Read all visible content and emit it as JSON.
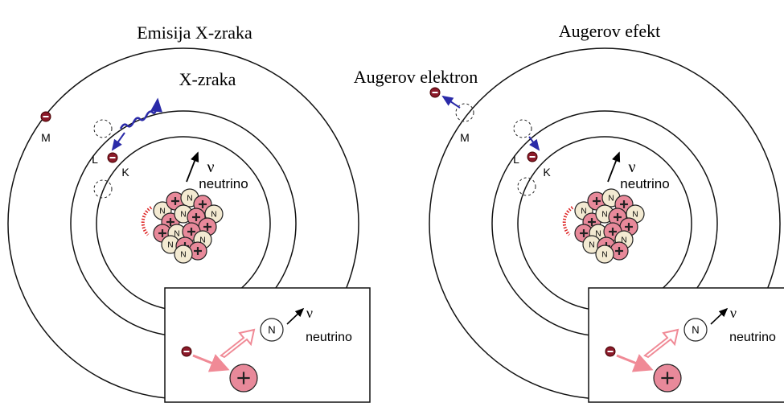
{
  "panels": [
    {
      "title": "Emisija X-zraka",
      "emitted_label": "X-zraka",
      "shells": {
        "M": "M",
        "L": "L",
        "K": "K"
      },
      "nu": "ν",
      "neutrino": "neutrino",
      "neutron": "N",
      "inset": {
        "neutron": "N",
        "nu": "ν",
        "neutrino": "neutrino"
      }
    },
    {
      "title": "Augerov efekt",
      "emitted_label": "Augerov elektron",
      "shells": {
        "M": "M",
        "L": "L",
        "K": "K"
      },
      "nu": "ν",
      "neutrino": "neutrino",
      "neutron": "N",
      "inset": {
        "neutron": "N",
        "nu": "ν",
        "neutrino": "neutrino"
      }
    }
  ]
}
